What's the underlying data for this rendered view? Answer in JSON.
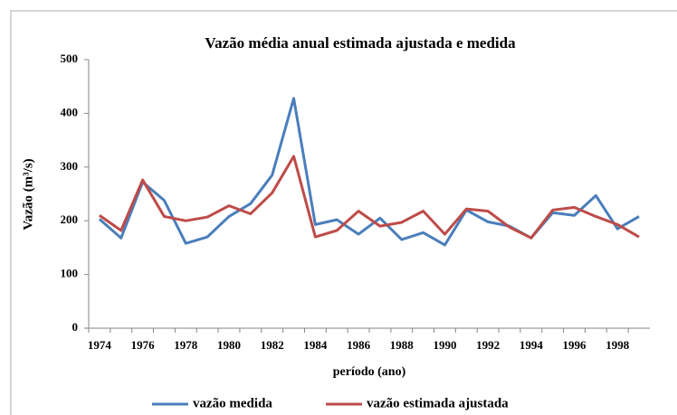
{
  "chart_data": {
    "type": "line",
    "title": "Vazão média anual estimada ajustada e medida",
    "y_label": "Vazão (m³/s)",
    "x_label": "período (ano)",
    "categories": [
      "1974",
      null,
      "1976",
      null,
      "1978",
      null,
      "1980",
      null,
      "1982",
      null,
      "1984",
      null,
      "1986",
      null,
      "1988",
      null,
      "1990",
      null,
      "1992",
      null,
      "1994",
      null,
      "1996",
      null,
      "1998",
      null
    ],
    "series": [
      {
        "name": "vazão medida",
        "color": "#4a7ebb",
        "values": [
          203,
          168,
          272,
          238,
          158,
          170,
          208,
          232,
          285,
          428,
          193,
          202,
          175,
          205,
          165,
          178,
          155,
          220,
          198,
          190,
          168,
          215,
          210,
          247,
          185,
          208
        ]
      },
      {
        "name": "vazão estimada ajustada",
        "color": "#be4b48",
        "values": [
          210,
          182,
          276,
          208,
          200,
          207,
          228,
          213,
          252,
          320,
          170,
          182,
          218,
          190,
          197,
          218,
          175,
          222,
          218,
          188,
          168,
          220,
          225,
          208,
          193,
          170
        ]
      }
    ],
    "ylim": [
      0,
      500
    ],
    "yticks": [
      0,
      100,
      200,
      300,
      400,
      500
    ],
    "legend": "bottom"
  }
}
